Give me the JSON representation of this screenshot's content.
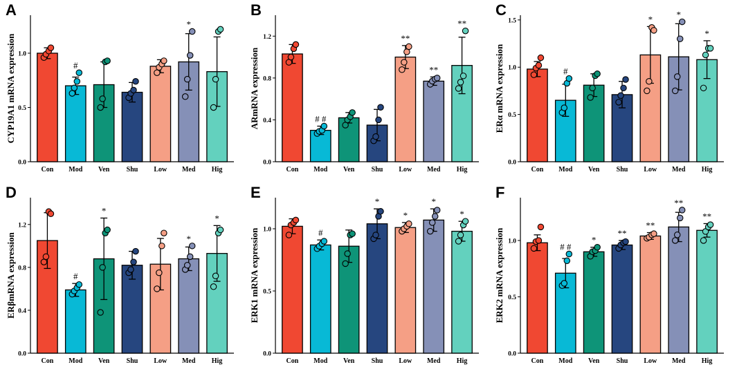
{
  "figure": {
    "background": "#ffffff"
  },
  "colors": [
    "#F04832",
    "#08B9D6",
    "#0E9478",
    "#26467F",
    "#F59F85",
    "#8590B7",
    "#63D1BE"
  ],
  "chart_data": [
    {
      "id": "A",
      "type": "bar",
      "letter": "A",
      "ylabel": "CYP19A1 mRNA expression",
      "categories": [
        "Con",
        "Mod",
        "Ven",
        "Shu",
        "Low",
        "Med",
        "Hig"
      ],
      "ylim": [
        0,
        1.35
      ],
      "ticks": [
        0.0,
        0.5,
        1.0
      ],
      "tick_labels": [
        "0.0",
        "0.5",
        "1.0"
      ],
      "values": [
        1.0,
        0.7,
        0.71,
        0.64,
        0.88,
        0.92,
        0.83
      ],
      "errors": [
        0.05,
        0.08,
        0.21,
        0.09,
        0.06,
        0.26,
        0.32
      ],
      "points": [
        [
          0.96,
          0.99,
          1.02,
          1.05
        ],
        [
          0.63,
          0.68,
          0.74,
          0.82
        ],
        [
          0.5,
          0.58,
          0.92,
          0.93
        ],
        [
          0.59,
          0.63,
          0.66,
          0.74
        ],
        [
          0.82,
          0.87,
          0.9,
          0.93
        ],
        [
          0.6,
          0.76,
          0.98,
          1.2
        ],
        [
          0.5,
          0.76,
          1.2,
          1.22
        ]
      ],
      "sig": [
        "",
        "#",
        "",
        "",
        "",
        "*",
        ""
      ]
    },
    {
      "id": "B",
      "type": "bar",
      "letter": "B",
      "ylabel": "ARmRNA expression",
      "categories": [
        "Con",
        "Mod",
        "Ven",
        "Shu",
        "Low",
        "Med",
        "Hig"
      ],
      "ylim": [
        0,
        1.4
      ],
      "ticks": [
        0.0,
        0.4,
        0.8,
        1.2
      ],
      "tick_labels": [
        "0.0",
        "0.4",
        "0.8",
        "1.2"
      ],
      "values": [
        1.03,
        0.3,
        0.42,
        0.35,
        1.0,
        0.77,
        0.92
      ],
      "errors": [
        0.09,
        0.04,
        0.05,
        0.15,
        0.11,
        0.04,
        0.27
      ],
      "points": [
        [
          0.95,
          1.0,
          1.08,
          1.12
        ],
        [
          0.27,
          0.29,
          0.3,
          0.34
        ],
        [
          0.35,
          0.4,
          0.43,
          0.47
        ],
        [
          0.2,
          0.24,
          0.4,
          0.52
        ],
        [
          0.88,
          0.95,
          1.05,
          1.1
        ],
        [
          0.74,
          0.77,
          0.79,
          0.8
        ],
        [
          0.7,
          0.76,
          0.82,
          1.25
        ]
      ],
      "sig": [
        "",
        "# #",
        "",
        "",
        "**",
        "**",
        "**"
      ]
    },
    {
      "id": "C",
      "type": "bar",
      "letter": "C",
      "ylabel": "ERα mRNA expression",
      "categories": [
        "Con",
        "Mod",
        "Ven",
        "Shu",
        "Low",
        "Med",
        "Hig"
      ],
      "ylim": [
        0,
        1.55
      ],
      "ticks": [
        0.0,
        0.5,
        1.0,
        1.5
      ],
      "tick_labels": [
        "0.0",
        "0.5",
        "1.0",
        "1.5"
      ],
      "values": [
        0.98,
        0.65,
        0.81,
        0.71,
        1.13,
        1.11,
        1.08
      ],
      "errors": [
        0.08,
        0.17,
        0.12,
        0.14,
        0.3,
        0.35,
        0.2
      ],
      "points": [
        [
          0.92,
          0.99,
          1.02,
          1.1
        ],
        [
          0.52,
          0.57,
          0.83,
          0.88
        ],
        [
          0.68,
          0.78,
          0.91,
          0.93
        ],
        [
          0.63,
          0.7,
          0.78,
          0.87
        ],
        [
          0.75,
          0.85,
          1.42,
          1.39
        ],
        [
          0.75,
          0.9,
          1.3,
          1.48
        ],
        [
          0.78,
          1.13,
          1.2,
          1.2
        ]
      ],
      "sig": [
        "",
        "#",
        "",
        "",
        "*",
        "*",
        "*"
      ]
    },
    {
      "id": "D",
      "type": "bar",
      "letter": "D",
      "ylabel": "ERβmRNA expression",
      "categories": [
        "Con",
        "Mod",
        "Ven",
        "Shu",
        "Low",
        "Med",
        "Hig"
      ],
      "ylim": [
        0,
        1.45
      ],
      "ticks": [
        0.0,
        0.4,
        0.8,
        1.2
      ],
      "tick_labels": [
        "0.0",
        "0.4",
        "0.8",
        "1.2"
      ],
      "values": [
        1.05,
        0.59,
        0.88,
        0.82,
        0.83,
        0.88,
        0.93
      ],
      "errors": [
        0.26,
        0.06,
        0.38,
        0.13,
        0.24,
        0.11,
        0.26
      ],
      "points": [
        [
          0.85,
          0.9,
          1.32,
          1.3
        ],
        [
          0.55,
          0.58,
          0.61,
          0.64
        ],
        [
          0.38,
          0.8,
          1.12,
          1.15
        ],
        [
          0.75,
          0.78,
          0.85,
          0.95
        ],
        [
          0.6,
          0.75,
          1.0,
          1.12
        ],
        [
          0.78,
          0.82,
          0.9,
          1.0
        ],
        [
          0.62,
          0.72,
          1.12,
          1.15
        ]
      ],
      "sig": [
        "",
        "#",
        "*",
        "",
        "",
        "*",
        "*"
      ]
    },
    {
      "id": "E",
      "type": "bar",
      "letter": "E",
      "ylabel": "ERK1 mRNA expression",
      "categories": [
        "Con",
        "Mod",
        "Ven",
        "Shu",
        "Low",
        "Med",
        "Hig"
      ],
      "ylim": [
        0,
        1.25
      ],
      "ticks": [
        0.0,
        0.5,
        1.0
      ],
      "tick_labels": [
        "0.0",
        "0.5",
        "1.0"
      ],
      "values": [
        1.02,
        0.87,
        0.86,
        1.04,
        1.01,
        1.07,
        0.98
      ],
      "errors": [
        0.06,
        0.04,
        0.13,
        0.12,
        0.04,
        0.09,
        0.08
      ],
      "points": [
        [
          0.95,
          1.03,
          1.05,
          1.07
        ],
        [
          0.84,
          0.86,
          0.88,
          0.9
        ],
        [
          0.72,
          0.8,
          0.95,
          0.96
        ],
        [
          0.92,
          0.95,
          1.1,
          1.14
        ],
        [
          0.98,
          1.0,
          1.02,
          1.04
        ],
        [
          0.98,
          1.05,
          1.1,
          1.15
        ],
        [
          0.9,
          0.95,
          1.03,
          1.06
        ]
      ],
      "sig": [
        "",
        "#",
        "",
        "*",
        "*",
        "*",
        "*"
      ]
    },
    {
      "id": "F",
      "type": "bar",
      "letter": "F",
      "ylabel": "ERK2 mRNA expression",
      "categories": [
        "Con",
        "Mod",
        "Ven",
        "Shu",
        "Low",
        "Med",
        "Hig"
      ],
      "ylim": [
        0,
        1.38
      ],
      "ticks": [
        0.0,
        0.5,
        1.0
      ],
      "tick_labels": [
        "0.0",
        "0.5",
        "1.0"
      ],
      "values": [
        0.98,
        0.71,
        0.9,
        0.96,
        1.04,
        1.12,
        1.09
      ],
      "errors": [
        0.07,
        0.13,
        0.04,
        0.04,
        0.03,
        0.13,
        0.06
      ],
      "points": [
        [
          0.93,
          0.99,
          1.0,
          1.12
        ],
        [
          0.6,
          0.62,
          0.82,
          0.88
        ],
        [
          0.86,
          0.9,
          0.91,
          0.94
        ],
        [
          0.93,
          0.96,
          0.98,
          0.99
        ],
        [
          1.02,
          1.03,
          1.05,
          1.06
        ],
        [
          1.0,
          1.05,
          1.2,
          1.27
        ],
        [
          1.0,
          1.08,
          1.12,
          1.14
        ]
      ],
      "sig": [
        "",
        "# #",
        "*",
        "**",
        "**",
        "**",
        "**"
      ]
    }
  ]
}
